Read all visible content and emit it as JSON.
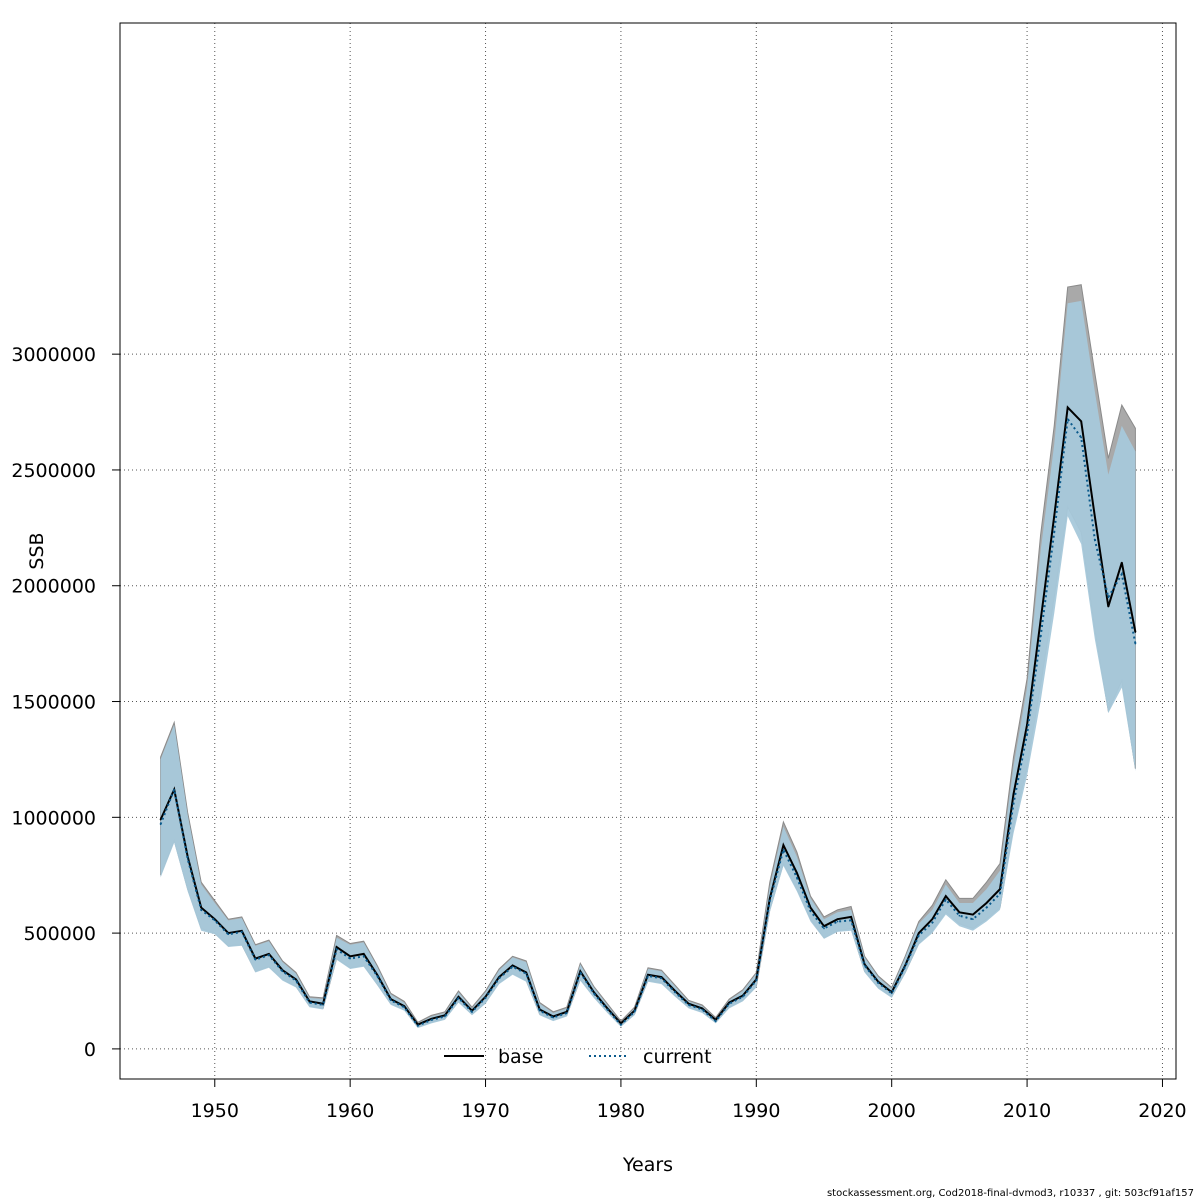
{
  "chart_data": {
    "type": "line",
    "title": "",
    "xlabel": "Years",
    "ylabel": "SSB",
    "xlim": [
      1943,
      2021
    ],
    "ylim": [
      -130000,
      4430000
    ],
    "x_ticks": [
      1950,
      1960,
      1970,
      1980,
      1990,
      2000,
      2010,
      2020
    ],
    "y_ticks": [
      0,
      500000,
      1000000,
      1500000,
      2000000,
      2500000,
      3000000
    ],
    "grid": true,
    "legend_position": "bottom",
    "colors": {
      "base_line": "#000000",
      "current_line": "#0b5a8c",
      "base_band": "#a9a9a9",
      "current_band": "#a6c8da",
      "grid": "#555555"
    },
    "x": [
      1946,
      1947,
      1948,
      1949,
      1950,
      1951,
      1952,
      1953,
      1954,
      1955,
      1956,
      1957,
      1958,
      1959,
      1960,
      1961,
      1962,
      1963,
      1964,
      1965,
      1966,
      1967,
      1968,
      1969,
      1970,
      1971,
      1972,
      1973,
      1974,
      1975,
      1976,
      1977,
      1978,
      1979,
      1980,
      1981,
      1982,
      1983,
      1984,
      1985,
      1986,
      1987,
      1988,
      1989,
      1990,
      1991,
      1992,
      1993,
      1994,
      1995,
      1996,
      1997,
      1998,
      1999,
      2000,
      2001,
      2002,
      2003,
      2004,
      2005,
      2006,
      2007,
      2008,
      2009,
      2010,
      2011,
      2012,
      2013,
      2014,
      2015,
      2016,
      2017,
      2018
    ],
    "series": [
      {
        "name": "base",
        "style": "solid",
        "values": [
          990000,
          1120000,
          830000,
          610000,
          560000,
          500000,
          510000,
          390000,
          410000,
          340000,
          300000,
          205000,
          195000,
          440000,
          400000,
          410000,
          320000,
          215000,
          185000,
          105000,
          130000,
          145000,
          225000,
          165000,
          225000,
          310000,
          360000,
          330000,
          170000,
          140000,
          160000,
          335000,
          245000,
          175000,
          110000,
          165000,
          320000,
          310000,
          250000,
          195000,
          175000,
          125000,
          200000,
          230000,
          300000,
          650000,
          880000,
          760000,
          610000,
          530000,
          560000,
          570000,
          365000,
          290000,
          245000,
          360000,
          500000,
          560000,
          660000,
          590000,
          580000,
          630000,
          690000,
          1100000,
          1400000,
          1850000,
          2300000,
          2770000,
          2710000,
          2300000,
          1910000,
          2100000,
          1800000
        ],
        "upper": [
          1260000,
          1410000,
          1020000,
          720000,
          640000,
          560000,
          570000,
          450000,
          470000,
          380000,
          330000,
          225000,
          220000,
          490000,
          455000,
          465000,
          360000,
          240000,
          205000,
          115000,
          145000,
          160000,
          250000,
          180000,
          250000,
          345000,
          400000,
          380000,
          200000,
          160000,
          180000,
          370000,
          270000,
          195000,
          120000,
          180000,
          350000,
          340000,
          275000,
          210000,
          190000,
          135000,
          215000,
          255000,
          330000,
          720000,
          980000,
          850000,
          660000,
          570000,
          600000,
          615000,
          400000,
          315000,
          265000,
          400000,
          550000,
          620000,
          730000,
          650000,
          650000,
          720000,
          800000,
          1260000,
          1600000,
          2220000,
          2690000,
          3290000,
          3300000,
          2920000,
          2550000,
          2780000,
          2680000
        ],
        "lower": [
          750000,
          900000,
          690000,
          520000,
          500000,
          445000,
          450000,
          335000,
          355000,
          300000,
          270000,
          185000,
          175000,
          390000,
          350000,
          360000,
          280000,
          195000,
          170000,
          95000,
          115000,
          130000,
          205000,
          150000,
          200000,
          285000,
          325000,
          295000,
          150000,
          125000,
          145000,
          300000,
          225000,
          160000,
          100000,
          150000,
          295000,
          285000,
          230000,
          180000,
          160000,
          115000,
          180000,
          210000,
          270000,
          600000,
          800000,
          690000,
          560000,
          480000,
          510000,
          520000,
          335000,
          265000,
          225000,
          330000,
          455000,
          510000,
          590000,
          540000,
          520000,
          560000,
          610000,
          960000,
          1220000,
          1570000,
          1950000,
          2340000,
          2230000,
          1810000,
          1460000,
          1590000,
          1210000
        ]
      },
      {
        "name": "current",
        "style": "dotted",
        "values": [
          970000,
          1120000,
          820000,
          600000,
          555000,
          495000,
          505000,
          385000,
          405000,
          335000,
          295000,
          200000,
          190000,
          430000,
          390000,
          400000,
          315000,
          210000,
          180000,
          100000,
          125000,
          140000,
          220000,
          160000,
          220000,
          305000,
          355000,
          325000,
          165000,
          135000,
          155000,
          330000,
          240000,
          170000,
          105000,
          160000,
          315000,
          305000,
          245000,
          190000,
          170000,
          120000,
          195000,
          225000,
          295000,
          640000,
          860000,
          740000,
          595000,
          520000,
          550000,
          555000,
          360000,
          285000,
          240000,
          355000,
          490000,
          545000,
          645000,
          575000,
          560000,
          610000,
          670000,
          1060000,
          1360000,
          1780000,
          2230000,
          2720000,
          2640000,
          2200000,
          1950000,
          2050000,
          1750000
        ],
        "upper": [
          1250000,
          1400000,
          1010000,
          710000,
          630000,
          555000,
          565000,
          445000,
          465000,
          375000,
          325000,
          220000,
          215000,
          480000,
          450000,
          460000,
          355000,
          235000,
          200000,
          110000,
          140000,
          155000,
          245000,
          175000,
          245000,
          340000,
          395000,
          375000,
          195000,
          155000,
          175000,
          365000,
          265000,
          190000,
          115000,
          175000,
          345000,
          335000,
          270000,
          205000,
          185000,
          130000,
          210000,
          250000,
          325000,
          700000,
          960000,
          830000,
          650000,
          560000,
          590000,
          600000,
          395000,
          310000,
          260000,
          395000,
          540000,
          600000,
          710000,
          630000,
          630000,
          690000,
          770000,
          1220000,
          1560000,
          2150000,
          2610000,
          3220000,
          3230000,
          2840000,
          2480000,
          2690000,
          2580000
        ],
        "lower": [
          740000,
          890000,
          680000,
          510000,
          495000,
          440000,
          445000,
          330000,
          350000,
          295000,
          265000,
          180000,
          170000,
          385000,
          345000,
          355000,
          275000,
          190000,
          165000,
          90000,
          110000,
          125000,
          200000,
          145000,
          195000,
          280000,
          320000,
          290000,
          145000,
          120000,
          140000,
          295000,
          220000,
          155000,
          95000,
          145000,
          290000,
          280000,
          225000,
          175000,
          155000,
          110000,
          175000,
          205000,
          265000,
          590000,
          790000,
          680000,
          550000,
          475000,
          505000,
          510000,
          330000,
          260000,
          220000,
          325000,
          450000,
          500000,
          580000,
          530000,
          510000,
          550000,
          600000,
          930000,
          1180000,
          1500000,
          1880000,
          2300000,
          2180000,
          1770000,
          1450000,
          1560000,
          1200000
        ]
      }
    ]
  },
  "footer": "stockassessment.org, Cod2018-final-dvmod3, r10337 , git: 503cf91af157"
}
